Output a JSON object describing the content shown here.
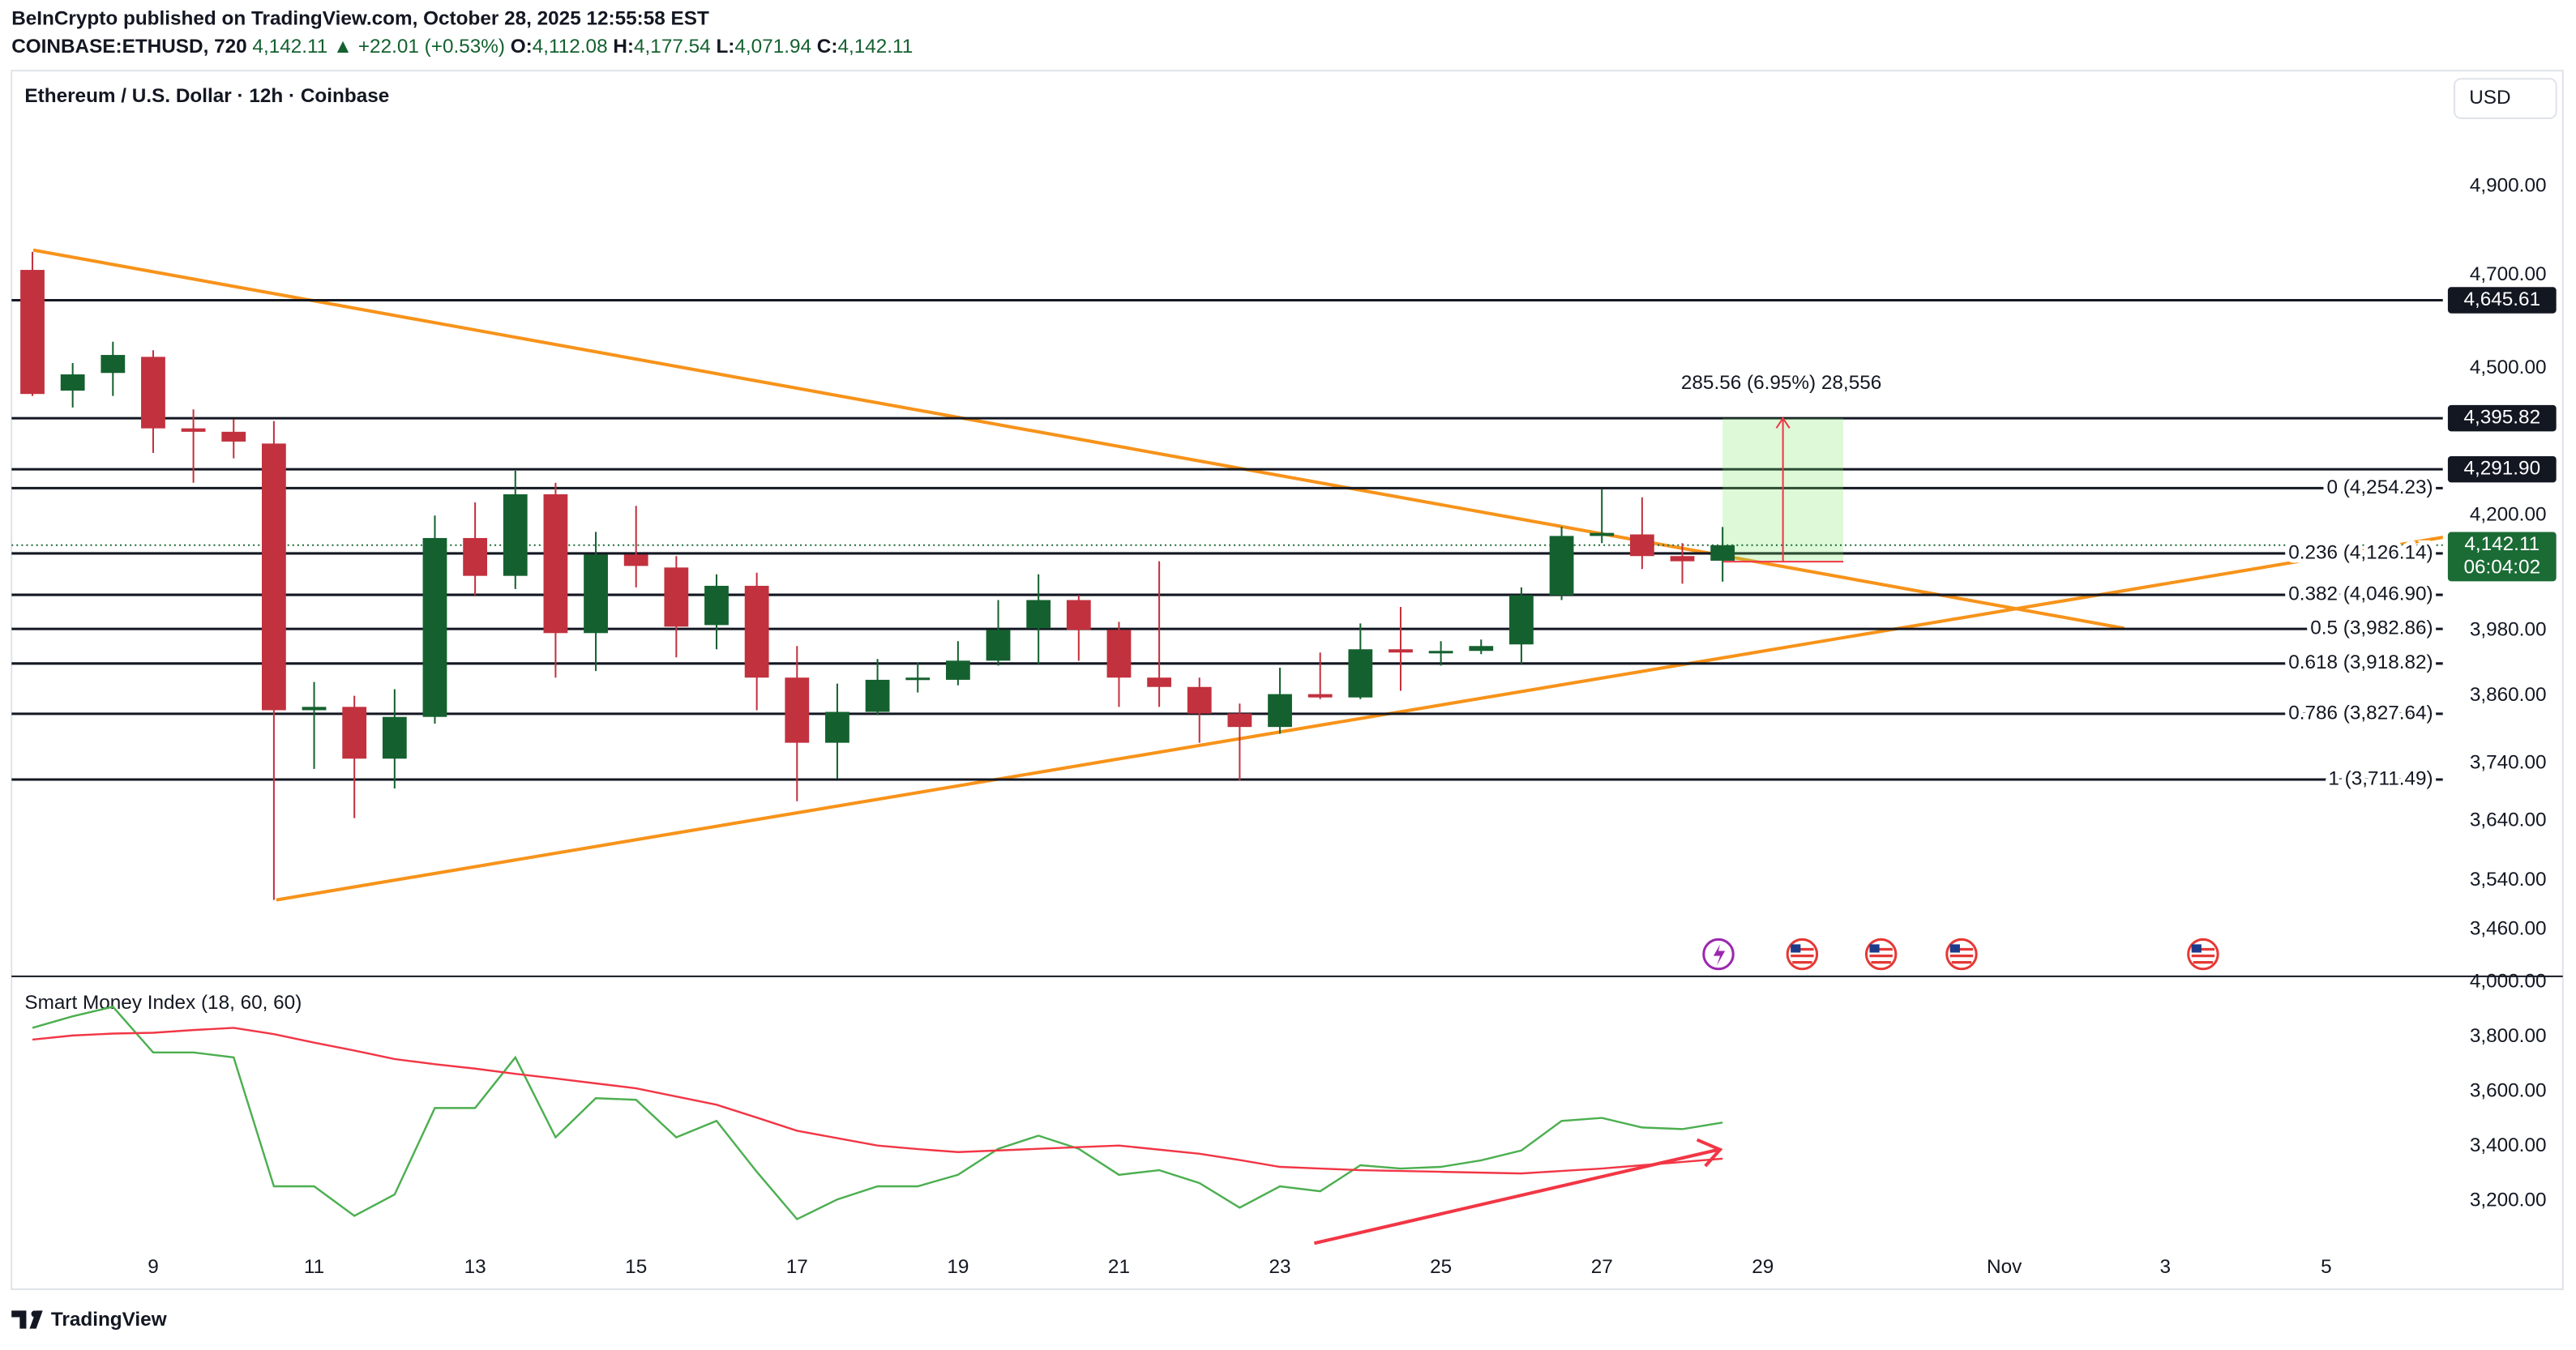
{
  "header": {
    "published": "BeInCrypto published on TradingView.com, October 28, 2025 12:55:58 EST",
    "symbol": "COINBASE:ETHUSD, 720",
    "price": "4,142.11",
    "change": "▲ +22.01 (+0.53%)",
    "ohlc": [
      {
        "key": "O:",
        "value": "4,112.08"
      },
      {
        "key": "H:",
        "value": "4,177.54"
      },
      {
        "key": "L:",
        "value": "4,071.94"
      },
      {
        "key": "C:",
        "value": "4,142.11"
      }
    ]
  },
  "chart_data": [
    {
      "type": "candlestick",
      "title": "Ethereum / U.S. Dollar · 12h · Coinbase",
      "currency": "USD",
      "x": [
        7.5,
        8,
        8.5,
        9,
        9.5,
        10,
        10.5,
        11,
        11.5,
        12,
        12.5,
        13,
        13.5,
        14,
        14.5,
        15,
        15.5,
        16,
        16.5,
        17,
        17.5,
        18,
        18.5,
        19,
        19.5,
        20,
        20.5,
        21,
        21.5,
        22,
        22.5,
        23,
        23.5,
        24,
        24.5,
        25,
        25.5,
        26,
        26.5,
        27,
        27.5,
        28,
        28.5
      ],
      "open": [
        4712,
        4453,
        4490,
        4524,
        4375,
        4368,
        4344,
        3834,
        3840,
        3748,
        3822,
        4156,
        4083,
        4242,
        3975,
        4124,
        4099,
        3990,
        4064,
        3893,
        3776,
        3831,
        3889,
        3889,
        3924,
        3984,
        4037,
        3981,
        3893,
        3876,
        3828,
        3804,
        3863,
        3857,
        3945,
        3939,
        3942,
        3954,
        4046,
        4160,
        4163,
        4121,
        4112.08
      ],
      "high": [
        4752,
        4511,
        4556,
        4538,
        4414,
        4394,
        4390,
        3885,
        3860,
        3872,
        4200,
        4226,
        4289,
        4265,
        4168,
        4219,
        4121,
        4086,
        4089,
        3951,
        3882,
        3927,
        3921,
        3960,
        4037,
        4086,
        4046,
        3996,
        4111,
        3893,
        3846,
        3911,
        3939,
        3993,
        4024,
        3960,
        3963,
        4061,
        4178,
        4252,
        4236,
        4146,
        4177.54
      ],
      "low": [
        4442,
        4418,
        4442,
        4325,
        4265,
        4314,
        3508,
        3730,
        3645,
        3696,
        3810,
        4046,
        4058,
        3893,
        3905,
        4061,
        3930,
        3945,
        3834,
        3674,
        3713,
        3825,
        3866,
        3879,
        3915,
        3918,
        3924,
        3840,
        3840,
        3776,
        3710,
        3792,
        3854,
        3854,
        3869,
        3915,
        3936,
        3918,
        4037,
        4146,
        4096,
        4068,
        4071.94
      ],
      "close": [
        4446,
        4487,
        4528,
        4375,
        4368,
        4348,
        3834,
        3840,
        3748,
        3822,
        4156,
        4083,
        4242,
        3975,
        4124,
        4102,
        3987,
        4064,
        3893,
        3776,
        3831,
        3889,
        3893,
        3924,
        3981,
        4037,
        3981,
        3893,
        3876,
        3828,
        3804,
        3863,
        3857,
        3945,
        3939,
        3942,
        3951,
        4046,
        4160,
        4166,
        4121,
        4111,
        4142.11
      ],
      "up_color": "#14612f",
      "down_color": "#c2313e",
      "log_scale": true,
      "grid": false,
      "xlim": [
        7.24,
        37.45
      ],
      "ylim": [
        3386,
        5165
      ],
      "yticks": [
        {
          "value": 4900,
          "label": "4,900.00"
        },
        {
          "value": 4700,
          "label": "4,700.00"
        },
        {
          "value": 4500,
          "label": "4,500.00"
        },
        {
          "value": 4200,
          "label": "4,200.00"
        },
        {
          "value": 3980,
          "label": "3,980.00"
        },
        {
          "value": 3860,
          "label": "3,860.00"
        },
        {
          "value": 3740,
          "label": "3,740.00"
        },
        {
          "value": 3640,
          "label": "3,640.00"
        },
        {
          "value": 3540,
          "label": "3,540.00"
        },
        {
          "value": 3460,
          "label": "3,460.00"
        }
      ],
      "hlines": [
        {
          "value": 4645.61,
          "label": "4,645.61"
        },
        {
          "value": 4395.82,
          "label": "4,395.82"
        },
        {
          "value": 4291.9,
          "label": "4,291.90"
        }
      ],
      "fib_levels": [
        {
          "value": 4254.23,
          "label": "0 (4,254.23)"
        },
        {
          "value": 4126.14,
          "label": "0.236 (4,126.14)"
        },
        {
          "value": 4046.9,
          "label": "0.382 (4,046.90)"
        },
        {
          "value": 3982.86,
          "label": "0.5 (3,982.86)"
        },
        {
          "value": 3918.82,
          "label": "0.618 (3,918.82)"
        },
        {
          "value": 3827.64,
          "label": "0.786 (3,827.64)"
        },
        {
          "value": 3711.49,
          "label": "1 (3,711.49)"
        }
      ],
      "last_price": {
        "value": 4142.11,
        "label": "4,142.11",
        "countdown": "06:04:02",
        "color": "#1b6b35"
      },
      "trendline_color": "#f7931a",
      "trendlines": [
        {
          "x": [
            7.51,
            33.49
          ],
          "y": [
            4756,
            3984
          ]
        },
        {
          "x": [
            10.53,
            37.51
          ],
          "y": [
            3508,
            4159
          ]
        }
      ],
      "measure": {
        "label": "285.56 (6.95%) 28,556",
        "x": [
          28.5,
          30
        ],
        "from": 4110.26,
        "to": 4395.82
      }
    },
    {
      "type": "line",
      "title": "Smart Money Index (18, 60, 60)",
      "series": [
        {
          "color": "#4caf50",
          "values": [
            3833,
            3875,
            3910,
            3743,
            3743,
            3725,
            3254,
            3254,
            3146,
            3224,
            3540,
            3540,
            3725,
            3433,
            3576,
            3570,
            3433,
            3493,
            3307,
            3134,
            3206,
            3254,
            3254,
            3296,
            3391,
            3439,
            3391,
            3296,
            3313,
            3266,
            3176,
            3254,
            3236,
            3331,
            3319,
            3325,
            3349,
            3385,
            3493,
            3504,
            3469,
            3463,
            3487
          ]
        },
        {
          "color": "#f23645",
          "values": [
            3790,
            3805,
            3812,
            3815,
            3825,
            3833,
            3810,
            3779,
            3750,
            3719,
            3700,
            3684,
            3665,
            3648,
            3630,
            3612,
            3582,
            3552,
            3505,
            3457,
            3430,
            3403,
            3390,
            3379,
            3385,
            3391,
            3397,
            3403,
            3388,
            3373,
            3350,
            3325,
            3319,
            3313,
            3310,
            3307,
            3304,
            3301,
            3310,
            3319,
            3331,
            3343,
            3355
          ]
        }
      ],
      "xlim": [
        7.24,
        37.45
      ],
      "ylim": [
        2878,
        4018
      ],
      "yticks": [
        {
          "value": 4000,
          "label": "4,000.00"
        },
        {
          "value": 3800,
          "label": "3,800.00"
        },
        {
          "value": 3600,
          "label": "3,600.00"
        },
        {
          "value": 3400,
          "label": "3,400.00"
        },
        {
          "value": 3200,
          "label": "3,200.00"
        }
      ],
      "xticks": [
        9,
        11,
        13,
        15,
        17,
        19,
        21,
        23,
        25,
        27,
        29,
        {
          "value": 32,
          "label": "Nov"
        },
        {
          "value": 34,
          "label": "3"
        },
        {
          "value": 36,
          "label": "5"
        }
      ]
    }
  ],
  "footer": {
    "logo": "TradingView"
  }
}
